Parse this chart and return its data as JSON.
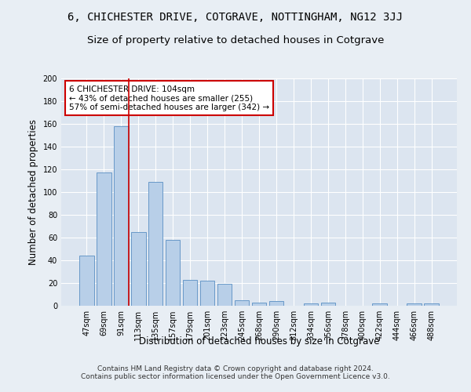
{
  "title": "6, CHICHESTER DRIVE, COTGRAVE, NOTTINGHAM, NG12 3JJ",
  "subtitle": "Size of property relative to detached houses in Cotgrave",
  "xlabel": "Distribution of detached houses by size in Cotgrave",
  "ylabel": "Number of detached properties",
  "categories": [
    "47sqm",
    "69sqm",
    "91sqm",
    "113sqm",
    "135sqm",
    "157sqm",
    "179sqm",
    "201sqm",
    "223sqm",
    "245sqm",
    "268sqm",
    "290sqm",
    "312sqm",
    "334sqm",
    "356sqm",
    "378sqm",
    "400sqm",
    "422sqm",
    "444sqm",
    "466sqm",
    "488sqm"
  ],
  "values": [
    44,
    117,
    158,
    65,
    109,
    58,
    23,
    22,
    19,
    5,
    3,
    4,
    0,
    2,
    3,
    0,
    0,
    2,
    0,
    2,
    2
  ],
  "bar_color": "#b8cfe8",
  "bar_edge_color": "#6899c8",
  "annotation_text": "6 CHICHESTER DRIVE: 104sqm\n← 43% of detached houses are smaller (255)\n57% of semi-detached houses are larger (342) →",
  "annotation_box_color": "#ffffff",
  "annotation_box_edge": "#cc0000",
  "red_line_x": 2.43,
  "ylim": [
    0,
    200
  ],
  "yticks": [
    0,
    20,
    40,
    60,
    80,
    100,
    120,
    140,
    160,
    180,
    200
  ],
  "bg_color": "#e8eef4",
  "plot_bg_color": "#dce5f0",
  "footer": "Contains HM Land Registry data © Crown copyright and database right 2024.\nContains public sector information licensed under the Open Government Licence v3.0.",
  "title_fontsize": 10,
  "subtitle_fontsize": 9.5,
  "tick_fontsize": 7,
  "ylabel_fontsize": 8.5,
  "xlabel_fontsize": 8.5,
  "annotation_fontsize": 7.5,
  "footer_fontsize": 6.5
}
